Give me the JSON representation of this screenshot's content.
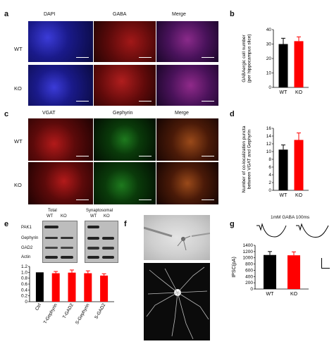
{
  "panels": {
    "a": {
      "letter": "a",
      "columns": [
        "DAPI",
        "GABA",
        "Merge"
      ],
      "rows": [
        "WT",
        "KO"
      ]
    },
    "b": {
      "letter": "b",
      "chart_data": {
        "type": "bar",
        "categories": [
          "WT",
          "KO"
        ],
        "values": [
          30,
          32
        ],
        "errors": [
          4,
          3
        ],
        "ylabel": "GABAergic cell number\n(per hippocampus slice)",
        "ylim": [
          0,
          40
        ],
        "yticks": [
          0,
          10,
          20,
          30,
          40
        ],
        "colors": [
          "#000000",
          "#ff0000"
        ]
      }
    },
    "c": {
      "letter": "c",
      "columns": [
        "VGAT",
        "Gephyrin",
        "Merge"
      ],
      "rows": [
        "WT",
        "KO"
      ]
    },
    "d": {
      "letter": "d",
      "chart_data": {
        "type": "bar",
        "categories": [
          "WT",
          "KO"
        ],
        "values": [
          10.5,
          13
        ],
        "errors": [
          1.2,
          1.8
        ],
        "ylabel": "Number of co-localization puncta\nbetween VGAT and Gephyrin",
        "ylim": [
          0,
          16
        ],
        "yticks": [
          0,
          2,
          4,
          6,
          8,
          10,
          12,
          14,
          16
        ],
        "colors": [
          "#000000",
          "#ff0000"
        ]
      }
    },
    "e": {
      "letter": "e",
      "blot": {
        "titles": [
          "Total",
          "Synaptosomal"
        ],
        "lane_labels": [
          "WT",
          "KO"
        ],
        "rows": [
          "PAK1",
          "Gephyrin",
          "GAD2",
          "Actin"
        ]
      },
      "chart_data": {
        "type": "bar",
        "categories": [
          "Ctrl",
          "T-Gephyrin",
          "T-GAD2",
          "S-Gephyrin",
          "S-GAD2"
        ],
        "values": [
          1.0,
          0.97,
          0.99,
          0.97,
          0.89
        ],
        "errors": [
          0,
          0.06,
          0.09,
          0.08,
          0.06
        ],
        "ylim": [
          0,
          1.2
        ],
        "yticks": [
          0,
          0.2,
          0.4,
          0.6,
          0.8,
          1.0,
          1.2
        ],
        "ytick_labels": [
          "0",
          "0.2",
          "0.4",
          "0.6",
          "0.8",
          "1.0",
          "1.2"
        ],
        "colors": [
          "#000000",
          "#ff0000",
          "#ff0000",
          "#ff0000",
          "#ff0000"
        ]
      }
    },
    "f": {
      "letter": "f"
    },
    "g": {
      "letter": "g",
      "trace_label": "1mM GABA 100ms",
      "chart_data": {
        "type": "bar",
        "categories": [
          "WT",
          "KO"
        ],
        "values": [
          1090,
          1080
        ],
        "errors": [
          110,
          110
        ],
        "ylabel": "IPSC(pA)",
        "ylim": [
          0,
          1400
        ],
        "yticks": [
          0,
          200,
          400,
          600,
          800,
          1000,
          1200,
          1400
        ],
        "colors": [
          "#000000",
          "#ff0000"
        ]
      }
    }
  }
}
